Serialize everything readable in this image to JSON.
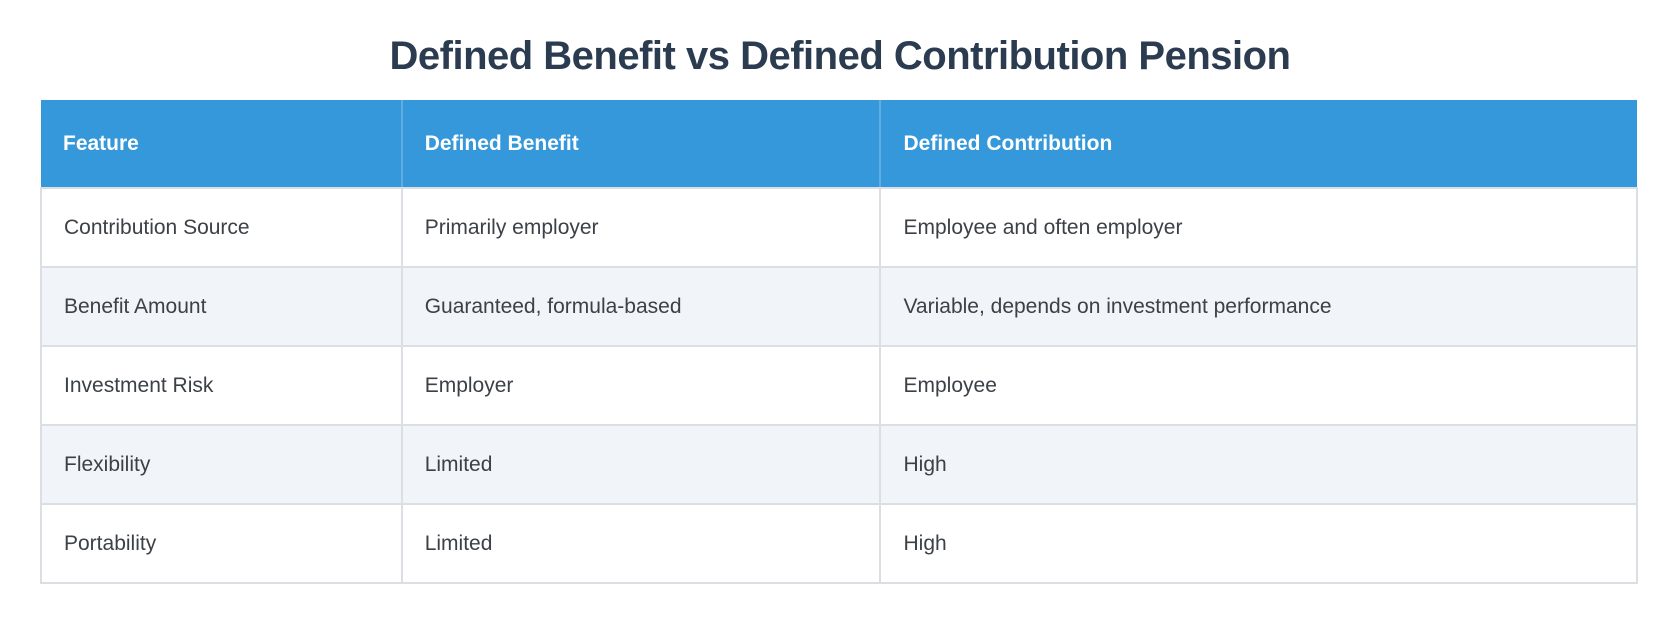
{
  "page": {
    "title": "Defined Benefit vs Defined Contribution Pension"
  },
  "colors": {
    "title_text": "#2c3c50",
    "header_bg": "#3598db",
    "header_text": "#ffffff",
    "header_divider": "#5fade1",
    "stripe_bg": "#f1f4f8",
    "row_bg": "#ffffff",
    "border": "#dbdee3",
    "body_text": "#3c4147",
    "page_bg": "#ffffff"
  },
  "chart_data": {
    "type": "table",
    "title": "Defined Benefit vs Defined Contribution Pension",
    "columns": [
      "Feature",
      "Defined Benefit",
      "Defined Contribution"
    ],
    "rows": [
      [
        "Contribution Source",
        "Primarily employer",
        "Employee and often employer"
      ],
      [
        "Benefit Amount",
        "Guaranteed, formula-based",
        "Variable, depends on investment performance"
      ],
      [
        "Investment Risk",
        "Employer",
        "Employee"
      ],
      [
        "Flexibility",
        "Limited",
        "High"
      ],
      [
        "Portability",
        "Limited",
        "High"
      ]
    ],
    "layout": {
      "header_style": "solid-blue",
      "row_striping": "alternate even rows shaded",
      "column_width_pct": [
        22.6,
        30.0,
        47.4
      ]
    }
  }
}
